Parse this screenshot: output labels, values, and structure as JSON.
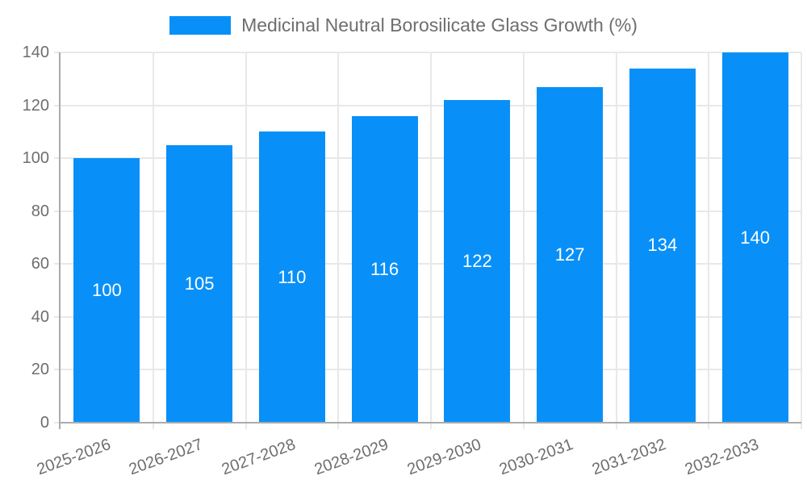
{
  "chart_data": {
    "type": "bar",
    "title": "Medicinal Neutral Borosilicate Glass Growth (%)",
    "categories": [
      "2025-2026",
      "2026-2027",
      "2027-2028",
      "2028-2029",
      "2029-2030",
      "2030-2031",
      "2031-2032",
      "2032-2033"
    ],
    "values": [
      100,
      105,
      110,
      116,
      122,
      127,
      134,
      140
    ],
    "xlabel": "",
    "ylabel": "",
    "ylim": [
      0,
      140
    ],
    "yticks": [
      0,
      20,
      40,
      60,
      80,
      100,
      120,
      140
    ],
    "grid": true,
    "legend_position": "top",
    "value_labels": [
      "100",
      "105",
      "110",
      "116",
      "122",
      "127",
      "134",
      "140"
    ],
    "ytick_labels": [
      "0",
      "20",
      "40",
      "60",
      "80",
      "100",
      "120",
      "140"
    ]
  },
  "colors": {
    "bar": "#0890f8",
    "grid": "#e8e8e8",
    "axis": "#ababab",
    "text": "#6e6e6e",
    "value_label": "#ffffff",
    "background": "#ffffff"
  }
}
